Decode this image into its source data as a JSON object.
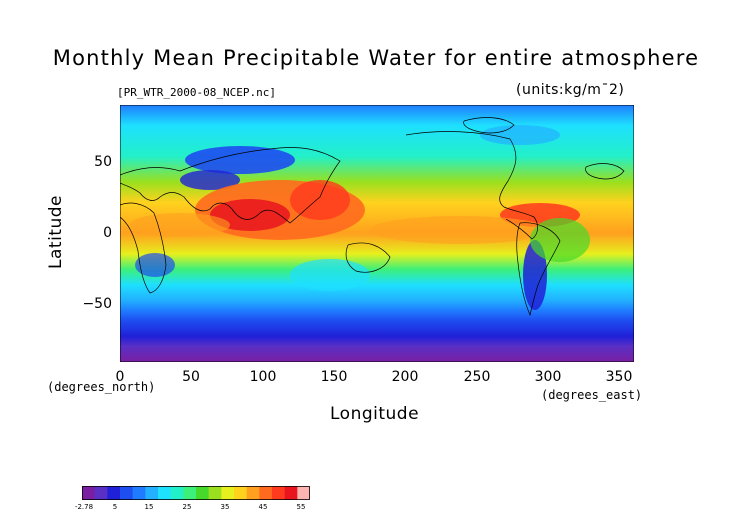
{
  "title": "Monthly Mean Precipitable Water for entire atmosphere",
  "file_label": "[PR_WTR_2000-08_NCEP.nc]",
  "units_label": "(units:kg/m¯2)",
  "x_axis": {
    "label": "Longitude",
    "unit_left": "(degrees_north)",
    "unit_right": "(degrees_east)",
    "ticks": [
      "0",
      "50",
      "100",
      "150",
      "200",
      "250",
      "300",
      "350"
    ],
    "range": [
      0,
      360
    ]
  },
  "y_axis": {
    "label": "Latitude",
    "ticks": [
      "50",
      "0",
      "−50"
    ],
    "range": [
      -90,
      90
    ]
  },
  "colorbar": {
    "labels": [
      "-2.78",
      "5",
      "15",
      "25",
      "35",
      "45",
      "55"
    ],
    "colors": [
      "#7a1fa2",
      "#5a2fc4",
      "#2020d8",
      "#1e4df0",
      "#1f7cff",
      "#22b0ff",
      "#1ee0ff",
      "#22f0c8",
      "#3cf07a",
      "#46d82a",
      "#9ae01e",
      "#e6f01e",
      "#ffd21e",
      "#ffa01e",
      "#ff6a1e",
      "#ff3a1e",
      "#e8141e",
      "#ffb4b4"
    ]
  },
  "map_data": {
    "type": "heatmap",
    "variable": "precipitable water",
    "units": "kg/m^2",
    "value_range": [
      -2.78,
      55
    ]
  }
}
